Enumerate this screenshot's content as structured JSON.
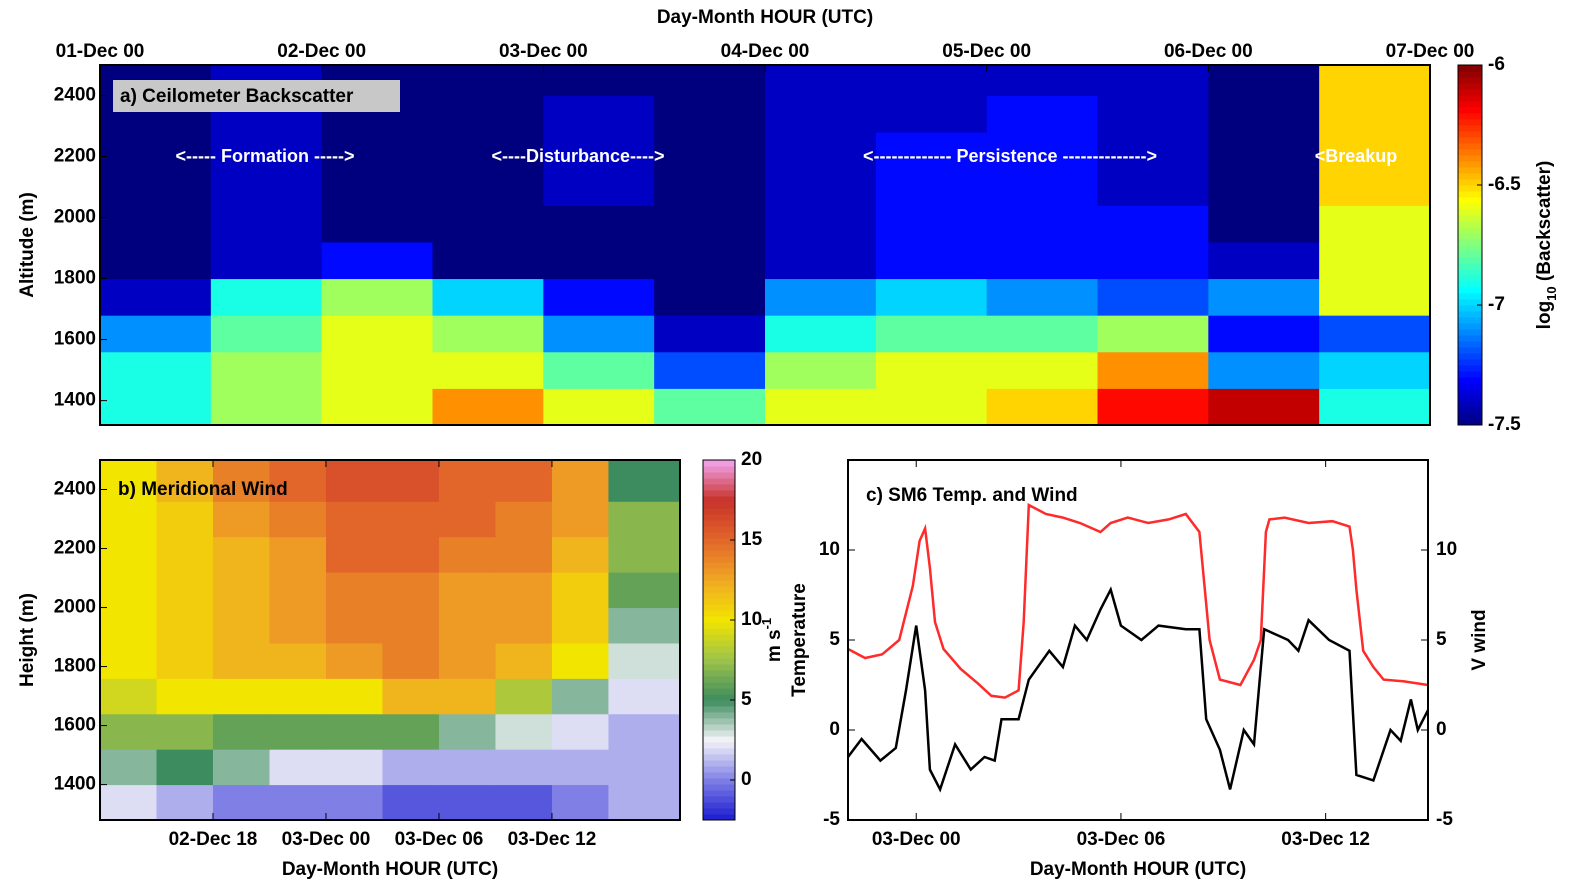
{
  "chart_data": [
    {
      "type": "heatmap",
      "title": "a) Ceilometer Backscatter",
      "xlabel": "Day-Month HOUR (UTC)",
      "ylabel": "Altitude (m)",
      "colorbar_label": {
        "text": "log",
        "sub": "10",
        "rest": " (Backscatter)"
      },
      "annotations": [
        "<----- Formation ----->",
        "<----Disturbance---->",
        "<------------- Persistence -------------->",
        "<Breakup"
      ],
      "xaxis": "top",
      "x_edges": [
        0,
        0.5,
        1,
        1.5,
        2,
        2.5,
        3,
        3.5,
        4,
        4.5,
        5,
        5.5,
        6
      ],
      "y_edges": [
        1320,
        1440,
        1560,
        1680,
        1800,
        1920,
        2040,
        2160,
        2280,
        2400,
        2500
      ],
      "z": [
        [
          -6.9,
          -6.7,
          -6.6,
          -6.4,
          -6.6,
          -6.8,
          -6.6,
          -6.6,
          -6.5,
          -6.2,
          -6.1,
          -6.9
        ],
        [
          -6.9,
          -6.7,
          -6.6,
          -6.6,
          -6.8,
          -7.2,
          -6.7,
          -6.6,
          -6.6,
          -6.4,
          -7.1,
          -7.0
        ],
        [
          -7.1,
          -6.8,
          -6.6,
          -6.7,
          -7.1,
          -7.4,
          -6.9,
          -6.8,
          -6.8,
          -6.7,
          -7.3,
          -7.2
        ],
        [
          -7.4,
          -6.9,
          -6.7,
          -7.0,
          -7.3,
          -7.5,
          -7.1,
          -7.0,
          -7.1,
          -7.2,
          -7.1,
          -6.6
        ],
        [
          -7.5,
          -7.4,
          -7.3,
          -7.5,
          -7.5,
          -7.5,
          -7.4,
          -7.3,
          -7.3,
          -7.3,
          -7.4,
          -6.6
        ],
        [
          -7.5,
          -7.4,
          -7.5,
          -7.5,
          -7.5,
          -7.5,
          -7.4,
          -7.3,
          -7.3,
          -7.3,
          -7.5,
          -6.6
        ],
        [
          -7.5,
          -7.4,
          -7.5,
          -7.5,
          -7.4,
          -7.5,
          -7.4,
          -7.3,
          -7.3,
          -7.4,
          -7.5,
          -6.5
        ],
        [
          -7.5,
          -7.4,
          -7.5,
          -7.5,
          -7.4,
          -7.5,
          -7.4,
          -7.3,
          -7.3,
          -7.4,
          -7.5,
          -6.5
        ],
        [
          -7.5,
          -7.4,
          -7.5,
          -7.5,
          -7.4,
          -7.5,
          -7.4,
          -7.4,
          -7.3,
          -7.4,
          -7.5,
          -6.5
        ],
        [
          -7.5,
          -7.4,
          -7.5,
          -7.5,
          -7.5,
          -7.5,
          -7.4,
          -7.4,
          -7.4,
          -7.4,
          -7.5,
          -6.5
        ]
      ],
      "xlim": [
        0,
        6
      ],
      "ylim": [
        1320,
        2500
      ],
      "xticks": [
        {
          "value": 0,
          "label": "01-Dec 00"
        },
        {
          "value": 1,
          "label": "02-Dec 00"
        },
        {
          "value": 2,
          "label": "03-Dec 00"
        },
        {
          "value": 3,
          "label": "04-Dec 00"
        },
        {
          "value": 4,
          "label": "05-Dec 00"
        },
        {
          "value": 5,
          "label": "06-Dec 00"
        },
        {
          "value": 6,
          "label": "07-Dec 00"
        }
      ],
      "yticks": [
        1400,
        1600,
        1800,
        2000,
        2200,
        2400
      ],
      "clim": [
        -7.5,
        -6
      ],
      "cticks": [
        -6,
        -6.5,
        -7,
        -7.5
      ],
      "colors": [
        "#00007f",
        "#0000ff",
        "#007fff",
        "#00ffff",
        "#7fff7f",
        "#ffff00",
        "#ff7f00",
        "#ff0000",
        "#7f0000"
      ]
    },
    {
      "type": "heatmap",
      "title": "b) Meridional Wind",
      "xlabel": "Day-Month HOUR (UTC)",
      "ylabel": "Height (m)",
      "colorbar_label": {
        "text": "m s",
        "sup": "-1"
      },
      "xaxis": "bottom",
      "x_edges": [
        -12,
        -9,
        -6,
        -3,
        0,
        3,
        6,
        9,
        12,
        15,
        18.8
      ],
      "y_edges": [
        1280,
        1400,
        1520,
        1640,
        1760,
        1880,
        2000,
        2120,
        2240,
        2360,
        2500
      ],
      "z": [
        [
          2,
          1,
          0,
          0,
          0,
          -1,
          -1,
          -1,
          0,
          1
        ],
        [
          4,
          5,
          4,
          2,
          2,
          1,
          1,
          1,
          1,
          1
        ],
        [
          7,
          7,
          6,
          6,
          6,
          6,
          4,
          3,
          2,
          1
        ],
        [
          9,
          10,
          10,
          10,
          10,
          12,
          12,
          8,
          4,
          2
        ],
        [
          10,
          11,
          12,
          12,
          13,
          14,
          13,
          12,
          10,
          3
        ],
        [
          10,
          11,
          12,
          13,
          14,
          14,
          13,
          13,
          11,
          4
        ],
        [
          10,
          11,
          12,
          13,
          14,
          14,
          13,
          13,
          11,
          6
        ],
        [
          10,
          11,
          12,
          13,
          15,
          15,
          14,
          14,
          12,
          7
        ],
        [
          10,
          11,
          13,
          14,
          15,
          15,
          15,
          14,
          13,
          7
        ],
        [
          10,
          12,
          14,
          15,
          16,
          16,
          15,
          15,
          13,
          5
        ]
      ],
      "xlim": [
        -12,
        18.8
      ],
      "ylim": [
        1280,
        2500
      ],
      "xticks": [
        {
          "value": -6,
          "label": "02-Dec 18"
        },
        {
          "value": 0,
          "label": "03-Dec 00"
        },
        {
          "value": 6,
          "label": "03-Dec 06"
        },
        {
          "value": 12,
          "label": "03-Dec 12"
        }
      ],
      "yticks": [
        1400,
        1600,
        1800,
        2000,
        2200,
        2400
      ],
      "clim": [
        -2.5,
        20
      ],
      "cticks": [
        0,
        5,
        10,
        15,
        20
      ],
      "colors": [
        "#1a1acf",
        "#7f7fe6",
        "#f4f4f8",
        "#3d8c5f",
        "#9cc24a",
        "#f2e500",
        "#f0a824",
        "#e2662a",
        "#c8322a",
        "#f2a6f2"
      ]
    },
    {
      "type": "line",
      "title": "c) SM6 Temp. and Wind",
      "xlabel": "Day-Month HOUR (UTC)",
      "xlim": [
        -2,
        15
      ],
      "ylim": [
        -5,
        15
      ],
      "y2lim": [
        -5,
        15
      ],
      "xticks": [
        {
          "value": 0,
          "label": "03-Dec 00"
        },
        {
          "value": 6,
          "label": "03-Dec 06"
        },
        {
          "value": 12,
          "label": "03-Dec 12"
        }
      ],
      "yticks": [
        -5,
        0,
        5,
        10
      ],
      "y2ticks": [
        -5,
        0,
        5,
        10
      ],
      "series": [
        {
          "name": "Temperature",
          "color": "#ff2a2a",
          "x": [
            -2,
            -1.5,
            -1,
            -0.5,
            -0.1,
            0.1,
            0.26,
            0.4,
            0.55,
            0.8,
            1.3,
            1.8,
            2.2,
            2.6,
            3.0,
            3.15,
            3.3,
            3.8,
            4.3,
            4.8,
            5.4,
            5.7,
            6.2,
            6.8,
            7.4,
            7.9,
            8.3,
            8.45,
            8.6,
            8.9,
            9.5,
            9.9,
            10.1,
            10.25,
            10.35,
            10.8,
            11.5,
            12.2,
            12.7,
            12.8,
            12.9,
            13.1,
            13.4,
            13.7,
            14.3,
            15
          ],
          "values": [
            4.5,
            4,
            4.2,
            5,
            8,
            10.5,
            11.2,
            9,
            6,
            4.5,
            3.4,
            2.6,
            1.9,
            1.8,
            2.2,
            6,
            12.5,
            12,
            11.8,
            11.5,
            11,
            11.5,
            11.8,
            11.5,
            11.7,
            12,
            11,
            8,
            5,
            2.8,
            2.5,
            3.9,
            5,
            11,
            11.7,
            11.8,
            11.5,
            11.6,
            11.3,
            10,
            7.8,
            4.4,
            3.5,
            2.8,
            2.7,
            2.5
          ]
        },
        {
          "name": "V wind",
          "color": "#000000",
          "axis": "y2",
          "x": [
            -2,
            -1.6,
            -1.05,
            -0.6,
            -0.3,
            0,
            0.26,
            0.4,
            0.7,
            1.14,
            1.6,
            2.0,
            2.3,
            2.5,
            3.0,
            3.3,
            3.9,
            4.3,
            4.65,
            5.0,
            5.4,
            5.7,
            6.0,
            6.6,
            7.1,
            7.9,
            8.3,
            8.5,
            8.9,
            9.2,
            9.6,
            9.9,
            10.2,
            10.9,
            11.2,
            11.5,
            12.1,
            12.7,
            12.9,
            13.4,
            13.9,
            14.2,
            14.5,
            14.7,
            15
          ],
          "values": [
            -1.5,
            -0.5,
            -1.7,
            -1,
            2.2,
            5.8,
            2.2,
            -2.2,
            -3.3,
            -0.8,
            -2.2,
            -1.5,
            -1.7,
            0.6,
            0.6,
            2.8,
            4.4,
            3.5,
            5.8,
            5,
            6.7,
            7.8,
            5.8,
            5,
            5.8,
            5.6,
            5.6,
            0.6,
            -1.1,
            -3.3,
            0,
            -0.8,
            5.6,
            5,
            4.4,
            6.1,
            5,
            4.4,
            -2.5,
            -2.8,
            0,
            -0.6,
            1.7,
            0,
            1.1
          ]
        }
      ]
    }
  ]
}
